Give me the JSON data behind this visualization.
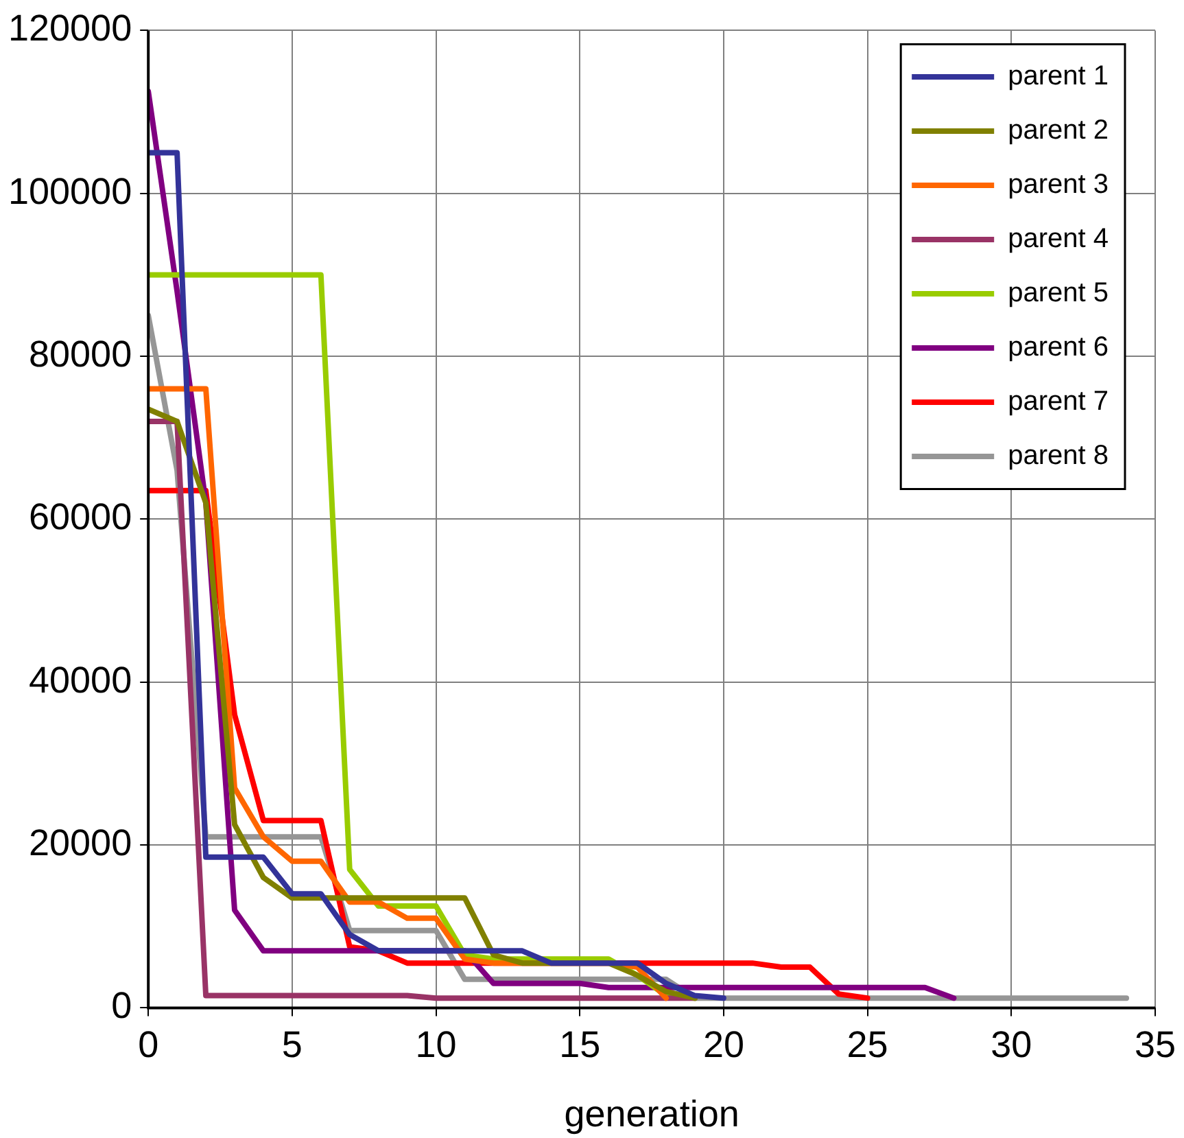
{
  "chart_data": {
    "type": "line",
    "xlabel": "generation",
    "x": [
      0,
      1,
      2,
      3,
      4,
      5,
      6,
      7,
      8,
      9,
      10,
      11,
      12,
      13,
      14,
      15,
      16,
      17,
      18,
      19,
      20,
      21,
      22,
      23,
      24,
      25,
      26,
      27,
      28,
      29,
      30,
      31,
      32,
      33,
      34
    ],
    "xlim": [
      0,
      35
    ],
    "xticks": [
      0,
      5,
      10,
      15,
      20,
      25,
      30,
      35
    ],
    "ylim": [
      0,
      120000
    ],
    "yticks": [
      0,
      20000,
      40000,
      60000,
      80000,
      100000,
      120000
    ],
    "grid": true,
    "legend": "top right",
    "marker": "none",
    "line_style": "solid",
    "series": [
      {
        "name": "parent 1",
        "color": "#333399",
        "values": [
          105000,
          105000,
          18500,
          18500,
          18500,
          14000,
          14000,
          9000,
          7000,
          7000,
          7000,
          7000,
          7000,
          7000,
          5500,
          5500,
          5500,
          5500,
          3000,
          1500,
          1200,
          null,
          null,
          null,
          null,
          null,
          null,
          null,
          null,
          null,
          null,
          null,
          null,
          null,
          null
        ]
      },
      {
        "name": "parent 2",
        "color": "#808000",
        "values": [
          73500,
          72000,
          62000,
          22500,
          16000,
          13500,
          13500,
          13500,
          13500,
          13500,
          13500,
          13500,
          6500,
          5500,
          5500,
          5500,
          5500,
          4000,
          2000,
          1200,
          null,
          null,
          null,
          null,
          null,
          null,
          null,
          null,
          null,
          null,
          null,
          null,
          null,
          null,
          null
        ]
      },
      {
        "name": "parent 3",
        "color": "#ff6600",
        "values": [
          76000,
          76000,
          76000,
          27000,
          21000,
          18000,
          18000,
          13000,
          13000,
          11000,
          11000,
          6000,
          5500,
          5500,
          5500,
          5500,
          5500,
          5000,
          1200,
          null,
          null,
          null,
          null,
          null,
          null,
          null,
          null,
          null,
          null,
          null,
          null,
          null,
          null,
          null,
          null
        ]
      },
      {
        "name": "parent 4",
        "color": "#993366",
        "values": [
          72000,
          72000,
          1500,
          1500,
          1500,
          1500,
          1500,
          1500,
          1500,
          1500,
          1200,
          1200,
          1200,
          1200,
          1200,
          1200,
          1200,
          1200,
          1200,
          1200,
          null,
          null,
          null,
          null,
          null,
          null,
          null,
          null,
          null,
          null,
          null,
          null,
          null,
          null,
          null
        ]
      },
      {
        "name": "parent 5",
        "color": "#99cc00",
        "values": [
          90000,
          90000,
          90000,
          90000,
          90000,
          90000,
          90000,
          17000,
          12500,
          12500,
          12500,
          6500,
          6000,
          6000,
          6000,
          6000,
          6000,
          4000,
          1500,
          1200,
          null,
          null,
          null,
          null,
          null,
          null,
          null,
          null,
          null,
          null,
          null,
          null,
          null,
          null,
          null
        ]
      },
      {
        "name": "parent 6",
        "color": "#800080",
        "values": [
          112500,
          88000,
          62000,
          12000,
          7000,
          7000,
          7000,
          7000,
          7000,
          7000,
          7000,
          7000,
          3000,
          3000,
          3000,
          3000,
          2500,
          2500,
          2500,
          2500,
          2500,
          2500,
          2500,
          2500,
          2500,
          2500,
          2500,
          2500,
          1200,
          null,
          null,
          null,
          null,
          null,
          null
        ]
      },
      {
        "name": "parent 7",
        "color": "#ff0000",
        "values": [
          63500,
          63500,
          63500,
          36000,
          23000,
          23000,
          23000,
          7500,
          7000,
          5500,
          5500,
          5500,
          5500,
          5500,
          5500,
          5500,
          5500,
          5500,
          5500,
          5500,
          5500,
          5500,
          5000,
          5000,
          1700,
          1200,
          null,
          null,
          null,
          null,
          null,
          null,
          null,
          null,
          null
        ]
      },
      {
        "name": "parent 8",
        "color": "#969696",
        "values": [
          85000,
          66000,
          21000,
          21000,
          21000,
          21000,
          21000,
          9500,
          9500,
          9500,
          9500,
          3500,
          3500,
          3500,
          3500,
          3500,
          3500,
          3500,
          3500,
          1200,
          1200,
          1200,
          1200,
          1200,
          1200,
          1200,
          1200,
          1200,
          1200,
          1200,
          1200,
          1200,
          1200,
          1200,
          1200
        ]
      }
    ]
  }
}
